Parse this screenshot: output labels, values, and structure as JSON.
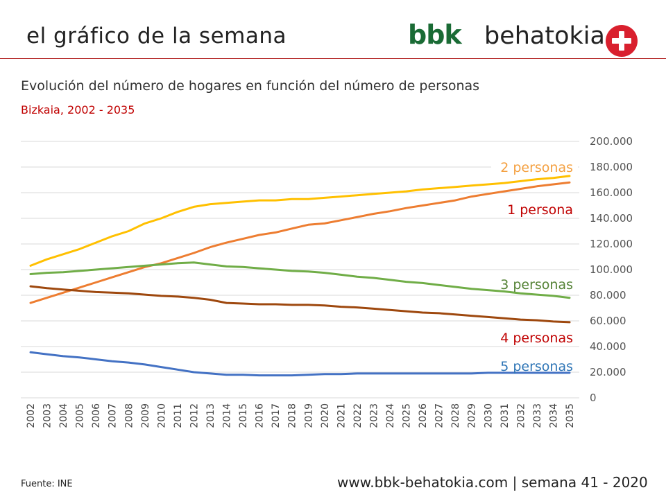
{
  "header": {
    "title": "el gráfico de la semana",
    "logo_bbk": "bbk",
    "logo_text": "behatokia"
  },
  "footer": {
    "source": "Fuente:  INE",
    "site": "www.bbk-behatokia.com | semana 41 - 2020"
  },
  "chart_data": {
    "type": "line",
    "title": "Evolución del número de hogares en función del número de personas",
    "subtitle": "Bizkaia, 2002 - 2035",
    "xlabel": "",
    "ylabel": "",
    "ylim": [
      0,
      200000
    ],
    "yticks": [
      0,
      20000,
      40000,
      60000,
      80000,
      100000,
      120000,
      140000,
      160000,
      180000,
      200000
    ],
    "ytick_labels": [
      "0",
      "20.000",
      "40.000",
      "60.000",
      "80.000",
      "100.000",
      "120.000",
      "140.000",
      "160.000",
      "180.000",
      "200.000"
    ],
    "grid": true,
    "legend": "inline labels at right end of lines",
    "x": [
      "2002",
      "2003",
      "2004",
      "2005",
      "2006",
      "2007",
      "2008",
      "2009",
      "2010",
      "2011",
      "2012",
      "2013",
      "2014",
      "2015",
      "2016",
      "2017",
      "2018",
      "2019",
      "2020",
      "2021",
      "2022",
      "2023",
      "2024",
      "2025",
      "2026",
      "2027",
      "2028",
      "2029",
      "2030",
      "2031",
      "2032",
      "2033",
      "2034",
      "2035"
    ],
    "series": [
      {
        "name": "2 personas",
        "color": "#FFC000",
        "label_color": "#F4A040",
        "values": [
          103000,
          108000,
          112000,
          116000,
          121000,
          126000,
          130000,
          136000,
          140000,
          145000,
          149000,
          151000,
          152000,
          153000,
          154000,
          154000,
          155000,
          155000,
          156000,
          157000,
          158000,
          159000,
          160000,
          161000,
          162500,
          163500,
          164500,
          165500,
          166500,
          167500,
          169000,
          170500,
          171500,
          173000
        ]
      },
      {
        "name": "1 persona",
        "color": "#ED7D31",
        "label_color": "#C00000",
        "values": [
          74000,
          78000,
          82000,
          86000,
          90000,
          94000,
          98000,
          102000,
          105000,
          109000,
          113000,
          117500,
          121000,
          124000,
          127000,
          129000,
          132000,
          135000,
          136000,
          138500,
          141000,
          143500,
          145500,
          148000,
          150000,
          152000,
          154000,
          157000,
          159000,
          161000,
          163000,
          165000,
          166500,
          168000
        ]
      },
      {
        "name": "3 personas",
        "color": "#70AD47",
        "label_color": "#548235",
        "values": [
          96500,
          97500,
          98000,
          99000,
          100000,
          101000,
          102000,
          103000,
          104000,
          105000,
          105500,
          104000,
          102500,
          102000,
          101000,
          100000,
          99000,
          98500,
          97500,
          96000,
          94500,
          93500,
          92000,
          90500,
          89500,
          88000,
          86500,
          85000,
          84000,
          83000,
          81500,
          80500,
          79500,
          78000
        ]
      },
      {
        "name": "4 personas",
        "color": "#9E480E",
        "label_color": "#C00000",
        "values": [
          87000,
          85500,
          84500,
          83500,
          82500,
          82000,
          81500,
          80500,
          79500,
          79000,
          78000,
          76500,
          74000,
          73500,
          73000,
          73000,
          72500,
          72500,
          72000,
          71000,
          70500,
          69500,
          68500,
          67500,
          66500,
          66000,
          65000,
          64000,
          63000,
          62000,
          61000,
          60500,
          59500,
          59000
        ]
      },
      {
        "name": "5 personas",
        "color": "#4472C4",
        "label_color": "#2E75B6",
        "values": [
          35500,
          34000,
          32500,
          31500,
          30000,
          28500,
          27500,
          26000,
          24000,
          22000,
          20000,
          19000,
          18000,
          18000,
          17500,
          17500,
          17500,
          18000,
          18500,
          18500,
          19000,
          19000,
          19000,
          19000,
          19000,
          19000,
          19000,
          19000,
          19500,
          19500,
          19500,
          19500,
          19500,
          19500
        ]
      }
    ]
  }
}
